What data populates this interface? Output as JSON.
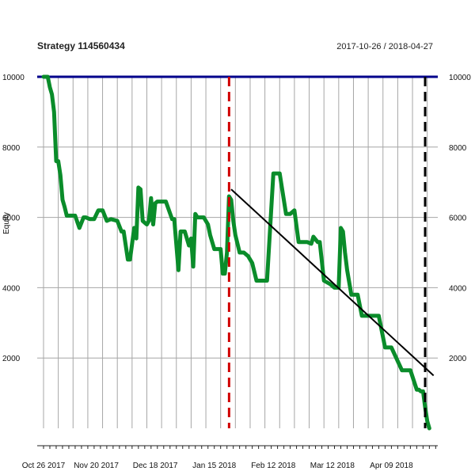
{
  "chart_data": {
    "type": "line",
    "title": "Strategy 114560434",
    "date_range": "2017-10-26 / 2018-04-27",
    "ylabel": "Equity",
    "xlabel": "",
    "ylim": [
      0,
      10000
    ],
    "yticks": [
      2000,
      4000,
      6000,
      8000,
      10000
    ],
    "x_tick_labels": [
      "Oct 26 2017",
      "Nov 20 2017",
      "Dec 18 2017",
      "Jan 15 2018",
      "Feb 12 2018",
      "Mar 12 2018",
      "Apr 09 2018"
    ],
    "grid": true,
    "series": [
      {
        "color": "#0a8c2a",
        "x": [
          "2017-10-26",
          "2017-10-27",
          "2017-10-28",
          "2017-10-29",
          "2017-10-30",
          "2017-10-31",
          "2017-11-01",
          "2017-11-02",
          "2017-11-03",
          "2017-11-04",
          "2017-11-05",
          "2017-11-06",
          "2017-11-08",
          "2017-11-10",
          "2017-11-12",
          "2017-11-14",
          "2017-11-15",
          "2017-11-17",
          "2017-11-19",
          "2017-11-21",
          "2017-11-23",
          "2017-11-25",
          "2017-11-27",
          "2017-11-30",
          "2017-12-02",
          "2017-12-03",
          "2017-12-05",
          "2017-12-06",
          "2017-12-08",
          "2017-12-09",
          "2017-12-10",
          "2017-12-11",
          "2017-12-12",
          "2017-12-13",
          "2017-12-14",
          "2017-12-15",
          "2017-12-16",
          "2017-12-17",
          "2017-12-18",
          "2017-12-19",
          "2017-12-20",
          "2017-12-23",
          "2017-12-26",
          "2017-12-27",
          "2017-12-29",
          "2017-12-30",
          "2017-12-31",
          "2018-01-01",
          "2018-01-03",
          "2018-01-04",
          "2018-01-05",
          "2018-01-06",
          "2018-01-07",
          "2018-01-08",
          "2018-01-10",
          "2018-01-12",
          "2018-01-13",
          "2018-01-15",
          "2018-01-16",
          "2018-01-17",
          "2018-01-18",
          "2018-01-19",
          "2018-01-20",
          "2018-01-21",
          "2018-01-22",
          "2018-01-23",
          "2018-01-24",
          "2018-01-25",
          "2018-01-27",
          "2018-01-29",
          "2018-01-31",
          "2018-02-02",
          "2018-02-04",
          "2018-02-06",
          "2018-02-09",
          "2018-02-12",
          "2018-02-13",
          "2018-02-15",
          "2018-02-18",
          "2018-02-20",
          "2018-02-22",
          "2018-02-24",
          "2018-02-26",
          "2018-02-28",
          "2018-03-02",
          "2018-03-03",
          "2018-03-05",
          "2018-03-06",
          "2018-03-08",
          "2018-03-11",
          "2018-03-13",
          "2018-03-15",
          "2018-03-16",
          "2018-03-17",
          "2018-03-18",
          "2018-03-19",
          "2018-03-21",
          "2018-03-24",
          "2018-03-26",
          "2018-03-30",
          "2018-04-01",
          "2018-04-03",
          "2018-04-06",
          "2018-04-09",
          "2018-04-14",
          "2018-04-15",
          "2018-04-18",
          "2018-04-21",
          "2018-04-22",
          "2018-04-23",
          "2018-04-24",
          "2018-04-25",
          "2018-04-26",
          "2018-04-27"
        ],
        "y": [
          10000,
          10000,
          10000,
          9700,
          9500,
          9000,
          7600,
          7600,
          7200,
          6500,
          6300,
          6050,
          6050,
          6050,
          5700,
          6000,
          6000,
          5950,
          5950,
          6200,
          6200,
          5900,
          5950,
          5900,
          5600,
          5600,
          4800,
          4800,
          5700,
          5400,
          6850,
          6800,
          5900,
          5850,
          5800,
          5900,
          6550,
          5800,
          6400,
          6450,
          6450,
          6450,
          5950,
          5950,
          4500,
          5600,
          5600,
          5600,
          5200,
          5400,
          4600,
          6100,
          6000,
          6000,
          6000,
          5800,
          5500,
          5100,
          5100,
          5100,
          5100,
          4400,
          4400,
          5000,
          6600,
          6500,
          5900,
          5500,
          5000,
          5000,
          4900,
          4700,
          4200,
          4200,
          4200,
          7250,
          7250,
          7250,
          6100,
          6100,
          6200,
          5300,
          5300,
          5300,
          5250,
          5450,
          5300,
          5300,
          4200,
          4100,
          4000,
          4000,
          5700,
          5600,
          5000,
          4500,
          3800,
          3800,
          3200,
          3200,
          3200,
          3200,
          2300,
          2300,
          1650,
          1650,
          1650,
          1100,
          1100,
          1050,
          1050,
          600,
          200,
          0
        ]
      }
    ],
    "trend_line": {
      "x": [
        "2018-01-23",
        "2018-04-29"
      ],
      "y": [
        6800,
        1500
      ],
      "color": "#000000"
    },
    "reference_line": {
      "y": 10000,
      "color": "#00008b"
    },
    "markers": [
      {
        "x": "2018-01-22",
        "color": "#d00000",
        "style": "dashed"
      },
      {
        "x": "2018-04-25",
        "color": "#000000",
        "style": "dashed"
      }
    ]
  }
}
